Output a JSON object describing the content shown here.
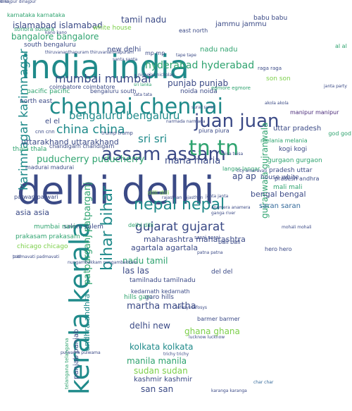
{
  "palette": {
    "navy": "#3b4a86",
    "blue": "#33699a",
    "teal": "#1f8a8a",
    "green": "#2fa36f",
    "lime": "#7ccf4a",
    "yellow": "#c8de2f",
    "purple": "#482878"
  },
  "words": [
    {
      "text": "india india",
      "color": "teal",
      "size": 46
    },
    {
      "text": "delhi delhi",
      "color": "navy",
      "size": 54
    },
    {
      "text": "chennai chennai",
      "color": "teal",
      "size": 30
    },
    {
      "text": "kerala kerala",
      "color": "teal",
      "size": 38,
      "vertical": true
    },
    {
      "text": "assam assam",
      "color": "navy",
      "size": 26
    },
    {
      "text": "nepal nepal",
      "color": "teal",
      "size": 22
    },
    {
      "text": "tn tn",
      "color": "green",
      "size": 30
    },
    {
      "text": "juan juan",
      "color": "navy",
      "size": 26
    },
    {
      "text": "china china",
      "color": "teal",
      "size": 17
    },
    {
      "text": "mumbai mumbai",
      "color": "navy",
      "size": 16
    },
    {
      "text": "bengaluru bengaluru",
      "color": "teal",
      "size": 15
    },
    {
      "text": "bihar bihar",
      "color": "teal",
      "size": 22,
      "vertical": true
    },
    {
      "text": "gujarat gujarat",
      "color": "navy",
      "size": 17
    },
    {
      "text": "karimnagar karimnagar",
      "color": "teal",
      "size": 17,
      "vertical": true
    },
    {
      "text": "hyderabad hyderabad",
      "color": "green",
      "size": 14
    },
    {
      "text": "islamabad islamabad",
      "color": "navy",
      "size": 12
    },
    {
      "text": "bangalore bangalore",
      "color": "green",
      "size": 12
    },
    {
      "text": "tamil nadu",
      "color": "navy",
      "size": 12
    },
    {
      "text": "jammu jammu",
      "color": "navy",
      "size": 10
    },
    {
      "text": "punjab punjab",
      "color": "navy",
      "size": 12
    },
    {
      "text": "uttarakhand uttarakhand",
      "color": "navy",
      "size": 11
    },
    {
      "text": "puducherry puducherry",
      "color": "green",
      "size": 13
    },
    {
      "text": "maria maria",
      "color": "navy",
      "size": 13
    },
    {
      "text": "sri sri",
      "color": "teal",
      "size": 15
    },
    {
      "text": "gujranwala gujranwala",
      "color": "green",
      "size": 12,
      "vertical": true
    },
    {
      "text": "maharashtra maharashtra",
      "color": "navy",
      "size": 11
    },
    {
      "text": "bengal bengal",
      "color": "navy",
      "size": 11
    },
    {
      "text": "saran saran",
      "color": "blue",
      "size": 10
    },
    {
      "text": "patparganj patparganj",
      "color": "green",
      "size": 13,
      "vertical": true
    },
    {
      "text": "nadu tamil",
      "color": "green",
      "size": 12
    },
    {
      "text": "las las",
      "color": "navy",
      "size": 12
    },
    {
      "text": "agartala agartala",
      "color": "navy",
      "size": 11
    },
    {
      "text": "martha martha",
      "color": "navy",
      "size": 13
    },
    {
      "text": "delhi new",
      "color": "navy",
      "size": 12
    },
    {
      "text": "ghana ghana",
      "color": "lime",
      "size": 12
    },
    {
      "text": "kolkata kolkata",
      "color": "teal",
      "size": 12
    },
    {
      "text": "manila manila",
      "color": "green",
      "size": 12
    },
    {
      "text": "sudan sudan",
      "color": "lime",
      "size": 12
    },
    {
      "text": "kashmir kashmir",
      "color": "navy",
      "size": 10
    },
    {
      "text": "san san",
      "color": "navy",
      "size": 12
    },
    {
      "text": "andhra andhra",
      "color": "teal",
      "size": 11,
      "vertical": true
    },
    {
      "text": "panjab panjab",
      "color": "navy",
      "size": 10,
      "vertical": true
    },
    {
      "text": "asia asia",
      "color": "navy",
      "size": 11
    },
    {
      "text": "uttar pradesh",
      "color": "navy",
      "size": 10
    },
    {
      "text": "pradesh uttar",
      "color": "navy",
      "size": 9
    },
    {
      "text": "ap ap",
      "color": "navy",
      "size": 12
    },
    {
      "text": "white house",
      "color": "lime",
      "size": 9
    },
    {
      "text": "house white",
      "color": "navy",
      "size": 9
    },
    {
      "text": "nadu nadu",
      "color": "green",
      "size": 10
    },
    {
      "text": "new delhi",
      "color": "navy",
      "size": 10
    },
    {
      "text": "son son",
      "color": "lime",
      "size": 9
    },
    {
      "text": "noida noida",
      "color": "navy",
      "size": 9
    },
    {
      "text": "tamilnadu tamilnadu",
      "color": "navy",
      "size": 9
    },
    {
      "text": "kedarnath kedarnath",
      "color": "navy",
      "size": 8
    },
    {
      "text": "hills garo",
      "color": "green",
      "size": 9
    },
    {
      "text": "garo hills",
      "color": "navy",
      "size": 9
    },
    {
      "text": "barmer barmer",
      "color": "navy",
      "size": 8
    },
    {
      "text": "salem salem",
      "color": "navy",
      "size": 9
    },
    {
      "text": "prakasam prakasam",
      "color": "green",
      "size": 9
    },
    {
      "text": "chicago chicago",
      "color": "lime",
      "size": 9
    },
    {
      "text": "mumbai navi",
      "color": "green",
      "size": 9
    },
    {
      "text": "kogi kogi",
      "color": "navy",
      "size": 9
    },
    {
      "text": "mali mali",
      "color": "green",
      "size": 9
    },
    {
      "text": "gurgaon gurgaon",
      "color": "green",
      "size": 9
    },
    {
      "text": "melania melania",
      "color": "green",
      "size": 8
    },
    {
      "text": "thala thala",
      "color": "green",
      "size": 9
    },
    {
      "text": "madurai madurai",
      "color": "navy",
      "size": 8
    },
    {
      "text": "el el",
      "color": "navy",
      "size": 10
    },
    {
      "text": "north east",
      "color": "navy",
      "size": 9
    },
    {
      "text": "pacific pacific",
      "color": "green",
      "size": 9
    },
    {
      "text": "south bengaluru",
      "color": "navy",
      "size": 9
    },
    {
      "text": "karnataka karnataka",
      "color": "green",
      "size": 8
    },
    {
      "text": "babu babu",
      "color": "navy",
      "size": 9
    },
    {
      "text": "sonora sonora",
      "color": "green",
      "size": 8
    },
    {
      "text": "patwari patwari",
      "color": "navy",
      "size": 8
    },
    {
      "text": "bali bali",
      "color": "navy",
      "size": 8
    },
    {
      "text": "hero hero",
      "color": "navy",
      "size": 8
    },
    {
      "text": "del del",
      "color": "navy",
      "size": 9
    },
    {
      "text": "langar langar",
      "color": "green",
      "size": 8
    },
    {
      "text": "piura piura",
      "color": "navy",
      "size": 8
    },
    {
      "text": "coimbatore coimbatore",
      "color": "navy",
      "size": 8
    },
    {
      "text": "bengaluru south",
      "color": "navy",
      "size": 8
    },
    {
      "text": "chandigarh chandigarh",
      "color": "navy",
      "size": 8
    },
    {
      "text": "east north",
      "color": "navy",
      "size": 8
    },
    {
      "text": "pradesh andhra",
      "color": "navy",
      "size": 8
    },
    {
      "text": "manipur manipur",
      "color": "purple",
      "size": 8
    },
    {
      "text": "god god",
      "color": "green",
      "size": 8
    },
    {
      "text": "trump trump",
      "color": "navy",
      "size": 7
    },
    {
      "text": "cnn cnn",
      "color": "navy",
      "size": 7
    },
    {
      "text": "delhi dilli",
      "color": "green",
      "size": 8
    },
    {
      "text": "dilli dilli",
      "color": "lime",
      "size": 8
    },
    {
      "text": "raga raga",
      "color": "navy",
      "size": 7
    },
    {
      "text": "al al",
      "color": "green",
      "size": 8
    },
    {
      "text": "sarai sarai",
      "color": "navy",
      "size": 7
    },
    {
      "text": "mp mp",
      "color": "navy",
      "size": 8
    },
    {
      "text": "santa santa",
      "color": "navy",
      "size": 6
    },
    {
      "text": "tape tape",
      "color": "navy",
      "size": 6
    },
    {
      "text": "nicholas nicholas",
      "color": "navy",
      "size": 6
    },
    {
      "text": "egmore egmore",
      "color": "green",
      "size": 7
    },
    {
      "text": "surat surat",
      "color": "navy",
      "size": 6
    },
    {
      "text": "narmada narmada",
      "color": "navy",
      "size": 6
    },
    {
      "text": "anamera anamera",
      "color": "navy",
      "size": 6
    },
    {
      "text": "city amaravati",
      "color": "navy",
      "size": 6
    },
    {
      "text": "janta janta",
      "color": "navy",
      "size": 6
    },
    {
      "text": "infosys infosys",
      "color": "navy",
      "size": 6
    },
    {
      "text": "lucknow lucknow",
      "color": "navy",
      "size": 6
    },
    {
      "text": "trichy trichy",
      "color": "navy",
      "size": 6
    },
    {
      "text": "pulwama pulwama",
      "color": "navy",
      "size": 6
    },
    {
      "text": "padmavati padmavati",
      "color": "navy",
      "size": 6
    },
    {
      "text": "telangana telangana",
      "color": "green",
      "size": 7,
      "vertical": true
    },
    {
      "text": "karanga karanga",
      "color": "navy",
      "size": 6
    },
    {
      "text": "char char",
      "color": "blue",
      "size": 6
    },
    {
      "text": "akola akola",
      "color": "navy",
      "size": 6
    },
    {
      "text": "patna patna",
      "color": "navy",
      "size": 6
    },
    {
      "text": "rajasthan rajasthan",
      "color": "navy",
      "size": 6
    },
    {
      "text": "thiruvananthapuram thiruvananthapuram",
      "color": "navy",
      "size": 6
    },
    {
      "text": "kano kano",
      "color": "navy",
      "size": 6
    },
    {
      "text": "sri lanka",
      "color": "green",
      "size": 6
    },
    {
      "text": "tata tata",
      "color": "navy",
      "size": 6
    },
    {
      "text": "janta party",
      "color": "navy",
      "size": 6
    },
    {
      "text": "ganga river",
      "color": "navy",
      "size": 6
    },
    {
      "text": "tr tr",
      "color": "navy",
      "size": 6
    },
    {
      "text": "mohali mohali",
      "color": "navy",
      "size": 6
    },
    {
      "text": "tuisa tuisa",
      "color": "navy",
      "size": 6
    },
    {
      "text": "nungambakkam nungambakkam",
      "color": "navy",
      "size": 6
    },
    {
      "text": "dinajpur dinajpur",
      "color": "navy",
      "size": 6
    },
    {
      "text": "kl kl",
      "color": "navy",
      "size": 6
    }
  ]
}
